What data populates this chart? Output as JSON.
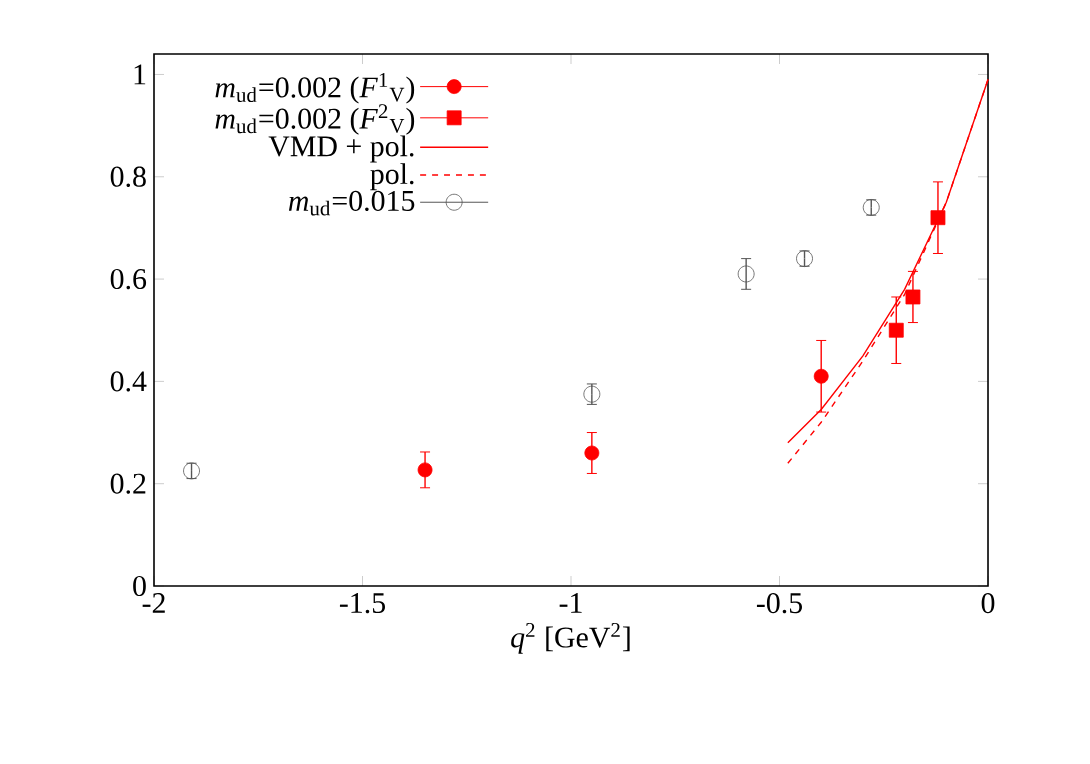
{
  "chart_data": {
    "type": "scatter",
    "xlabel": "*q*$^{2}$ [GeV$^{2}$]",
    "xlim": [
      -2,
      0
    ],
    "ylim": [
      0,
      1.04
    ],
    "xticks": [
      -2,
      -1.5,
      -1,
      -0.5,
      0
    ],
    "yticks": [
      0,
      0.2,
      0.4,
      0.6,
      0.8,
      1
    ],
    "legend": "top left",
    "grid": false,
    "series": [
      {
        "name": "*m*$_{ud}$=0.002 (*F*$^{1}$$_{V}$)",
        "color": "#ff0000",
        "marker": "circle",
        "x": [
          -1.35,
          -0.95,
          -0.4
        ],
        "values": [
          0.227,
          0.26,
          0.41
        ],
        "errors": [
          0.035,
          0.04,
          0.07
        ]
      },
      {
        "name": "*m*$_{ud}$=0.002 (*F*$^{2}$$_{V}$)",
        "color": "#ff0000",
        "marker": "square",
        "x": [
          -0.22,
          -0.18,
          -0.12
        ],
        "values": [
          0.5,
          0.565,
          0.72
        ],
        "errors": [
          0.065,
          0.05,
          0.07
        ]
      },
      {
        "name": "VMD + pol.",
        "type": "line",
        "color": "#ff0000",
        "line_style": "solid",
        "x": [
          -0.48,
          -0.4,
          -0.3,
          -0.2,
          -0.1,
          0
        ],
        "values": [
          0.28,
          0.345,
          0.45,
          0.58,
          0.75,
          0.99
        ]
      },
      {
        "name": "pol.",
        "type": "line",
        "color": "#ff0000",
        "line_style": "dashed",
        "x": [
          -0.48,
          -0.4,
          -0.3,
          -0.2,
          -0.1,
          0
        ],
        "values": [
          0.24,
          0.32,
          0.44,
          0.57,
          0.75,
          0.99
        ]
      },
      {
        "name": "*m*$_{ud}$=0.015",
        "color": "#555555",
        "marker": "open circle",
        "x": [
          -1.91,
          -0.95,
          -0.58,
          -0.44,
          -0.28
        ],
        "values": [
          0.225,
          0.375,
          0.61,
          0.64,
          0.74
        ],
        "errors": [
          0.015,
          0.02,
          0.03,
          0.015,
          0.015
        ]
      }
    ]
  }
}
